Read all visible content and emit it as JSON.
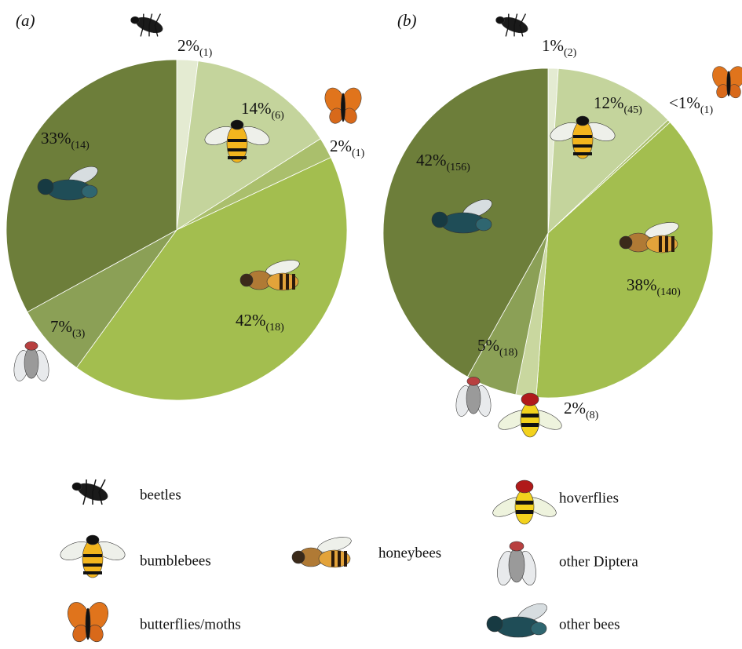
{
  "chart_data": [
    {
      "type": "pie",
      "label": "(a)",
      "values": [
        2,
        14,
        2,
        42,
        7,
        33
      ],
      "value_labels": [
        "2%",
        "14%",
        "2%",
        "42%",
        "7%",
        "33%"
      ],
      "count_labels": [
        "(1)",
        "(6)",
        "(1)",
        "(18)",
        "(3)",
        "(14)"
      ],
      "colors": [
        "#e4ebd2",
        "#c4d49c",
        "#aabf6c",
        "#a3be4f",
        "#8ba056",
        "#6d7e3a"
      ]
    },
    {
      "type": "pie",
      "label": "(b)",
      "categories": [
        "beetles",
        "bumblebees",
        "butterflies/moths",
        "honeybees",
        "hoverflies",
        "other Diptera",
        "other bees"
      ],
      "values": [
        1,
        12,
        0.3,
        38,
        2,
        5,
        42
      ],
      "value_labels": [
        "1%",
        "12%",
        "<1%",
        "38%",
        "2%",
        "5%",
        "42%"
      ],
      "count_labels": [
        "(2)",
        "(45)",
        "(1)",
        "(140)",
        "(8)",
        "(18)",
        "(156)"
      ],
      "colors": [
        "#e4ebd2",
        "#c4d49c",
        "#aabf6c",
        "#a3be4f",
        "#c9d79f",
        "#8ba056",
        "#6d7e3a"
      ]
    }
  ]
}
